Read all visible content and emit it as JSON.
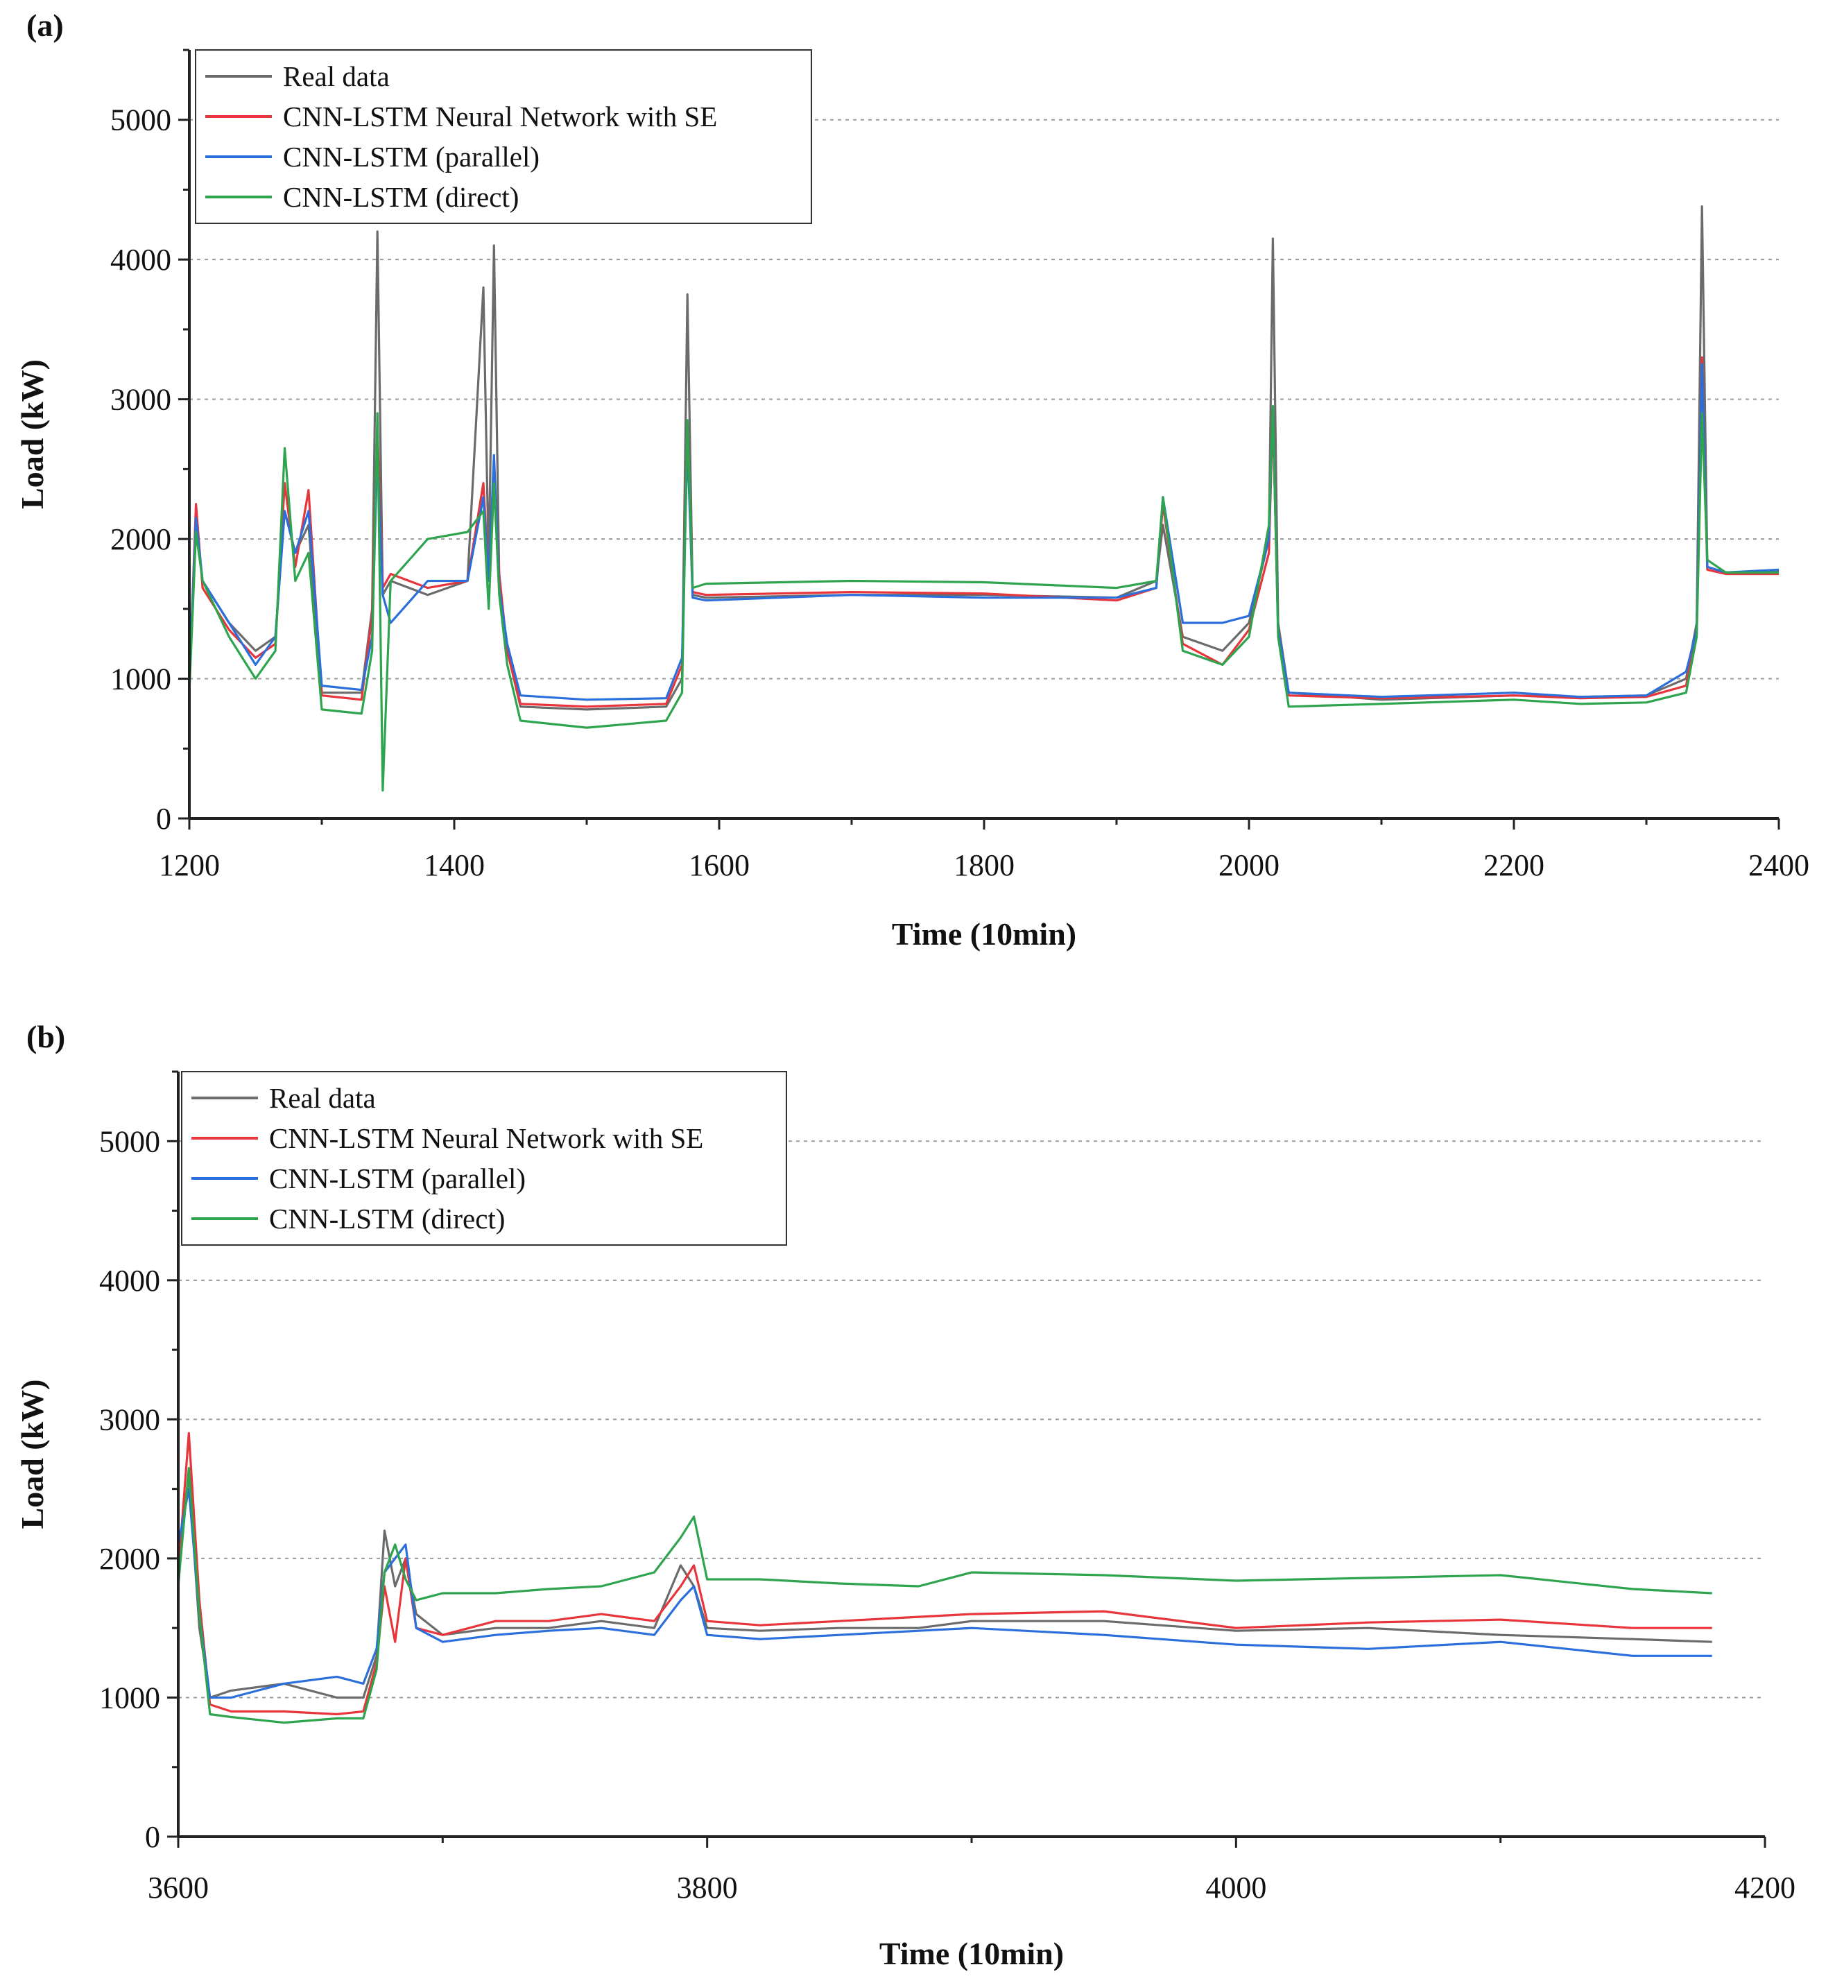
{
  "chart_data": [
    {
      "type": "line",
      "panel_label": "(a)",
      "xlabel": "Time (10min)",
      "ylabel": "Load (kW)",
      "xlim": [
        1200,
        2400
      ],
      "ylim": [
        0,
        5500
      ],
      "xticks": [
        1200,
        1400,
        1600,
        1800,
        2000,
        2200,
        2400
      ],
      "yticks": [
        0,
        1000,
        2000,
        3000,
        4000,
        5000
      ],
      "grid": true,
      "legend_position": "top-left",
      "series": [
        {
          "name": "Real data",
          "color": "#6b6b6b",
          "x": [
            1200,
            1205,
            1210,
            1230,
            1250,
            1265,
            1272,
            1280,
            1290,
            1300,
            1330,
            1338,
            1342,
            1346,
            1352,
            1380,
            1410,
            1422,
            1426,
            1430,
            1434,
            1440,
            1450,
            1500,
            1560,
            1572,
            1576,
            1580,
            1590,
            1700,
            1800,
            1900,
            1930,
            1935,
            1950,
            1980,
            2000,
            2015,
            2018,
            2022,
            2030,
            2100,
            2200,
            2250,
            2300,
            2330,
            2338,
            2342,
            2346,
            2360,
            2400
          ],
          "y": [
            1000,
            2100,
            1700,
            1400,
            1200,
            1300,
            2200,
            1900,
            2100,
            900,
            900,
            1500,
            4200,
            1600,
            1700,
            1600,
            1700,
            3800,
            1800,
            4100,
            1700,
            1200,
            800,
            780,
            800,
            1000,
            3750,
            1600,
            1580,
            1600,
            1600,
            1580,
            1700,
            2100,
            1300,
            1200,
            1400,
            2000,
            4150,
            1400,
            900,
            850,
            880,
            870,
            880,
            1000,
            1400,
            4380,
            1800,
            1760,
            1770
          ]
        },
        {
          "name": "CNN-LSTM Neural Network with SE",
          "color": "#e8353b",
          "x": [
            1200,
            1205,
            1210,
            1230,
            1250,
            1265,
            1272,
            1280,
            1290,
            1300,
            1330,
            1338,
            1342,
            1346,
            1352,
            1380,
            1410,
            1422,
            1426,
            1430,
            1434,
            1440,
            1450,
            1500,
            1560,
            1572,
            1576,
            1580,
            1590,
            1700,
            1800,
            1900,
            1930,
            1935,
            1950,
            1980,
            2000,
            2015,
            2018,
            2022,
            2030,
            2100,
            2200,
            2250,
            2300,
            2330,
            2338,
            2342,
            2346,
            2360,
            2400
          ],
          "y": [
            950,
            2250,
            1650,
            1350,
            1150,
            1250,
            2400,
            1800,
            2350,
            880,
            850,
            1450,
            2800,
            1650,
            1750,
            1650,
            1700,
            2400,
            1700,
            2500,
            1750,
            1200,
            820,
            800,
            820,
            1100,
            2800,
            1620,
            1600,
            1620,
            1610,
            1560,
            1650,
            2250,
            1250,
            1100,
            1350,
            1900,
            2900,
            1350,
            880,
            860,
            880,
            860,
            870,
            950,
            1350,
            3300,
            1780,
            1750,
            1750
          ]
        },
        {
          "name": "CNN-LSTM (parallel)",
          "color": "#2a6fdb",
          "x": [
            1200,
            1205,
            1210,
            1230,
            1250,
            1265,
            1272,
            1280,
            1290,
            1300,
            1330,
            1338,
            1342,
            1346,
            1352,
            1380,
            1410,
            1422,
            1426,
            1430,
            1434,
            1440,
            1450,
            1500,
            1560,
            1572,
            1576,
            1580,
            1590,
            1700,
            1800,
            1900,
            1930,
            1935,
            1950,
            1980,
            2000,
            2015,
            2018,
            2022,
            2030,
            2100,
            2200,
            2250,
            2300,
            2330,
            2338,
            2342,
            2346,
            2360,
            2400
          ],
          "y": [
            1000,
            2150,
            1700,
            1400,
            1100,
            1300,
            2200,
            1900,
            2200,
            950,
            920,
            1300,
            2650,
            1600,
            1400,
            1700,
            1700,
            2300,
            1700,
            2600,
            1650,
            1250,
            880,
            850,
            860,
            1150,
            2700,
            1580,
            1560,
            1600,
            1580,
            1580,
            1650,
            2300,
            1400,
            1400,
            1450,
            2000,
            2950,
            1350,
            900,
            870,
            900,
            870,
            880,
            1050,
            1350,
            3250,
            1800,
            1760,
            1780
          ]
        },
        {
          "name": "CNN-LSTM (direct)",
          "color": "#2ea44f",
          "x": [
            1200,
            1205,
            1210,
            1230,
            1250,
            1265,
            1272,
            1280,
            1290,
            1300,
            1330,
            1338,
            1342,
            1346,
            1352,
            1380,
            1410,
            1422,
            1426,
            1430,
            1434,
            1440,
            1450,
            1500,
            1560,
            1572,
            1576,
            1580,
            1590,
            1700,
            1800,
            1900,
            1930,
            1935,
            1950,
            1980,
            2000,
            2015,
            2018,
            2022,
            2030,
            2100,
            2200,
            2250,
            2300,
            2330,
            2338,
            2342,
            2346,
            2360,
            2400
          ],
          "y": [
            900,
            2050,
            1700,
            1300,
            1000,
            1200,
            2650,
            1700,
            1900,
            780,
            750,
            1200,
            2900,
            200,
            1700,
            2000,
            2050,
            2200,
            1500,
            2400,
            1600,
            1100,
            700,
            650,
            700,
            900,
            2850,
            1650,
            1680,
            1700,
            1690,
            1650,
            1700,
            2300,
            1200,
            1100,
            1300,
            2100,
            2950,
            1300,
            800,
            820,
            850,
            820,
            830,
            900,
            1300,
            2900,
            1850,
            1760,
            1760
          ]
        }
      ]
    },
    {
      "type": "line",
      "panel_label": "(b)",
      "xlabel": "Time (10min)",
      "ylabel": "Load (kW)",
      "xlim": [
        3600,
        4200
      ],
      "ylim": [
        0,
        5500
      ],
      "xticks": [
        3600,
        3800,
        4000,
        4200
      ],
      "yticks": [
        0,
        1000,
        2000,
        3000,
        4000,
        5000
      ],
      "grid": true,
      "legend_position": "top-left",
      "series": [
        {
          "name": "Real data",
          "color": "#6b6b6b",
          "x": [
            3600,
            3604,
            3608,
            3612,
            3620,
            3640,
            3660,
            3670,
            3675,
            3678,
            3682,
            3686,
            3690,
            3700,
            3720,
            3740,
            3760,
            3780,
            3790,
            3795,
            3800,
            3820,
            3850,
            3880,
            3900,
            3950,
            4000,
            4050,
            4100,
            4150,
            4180
          ],
          "y": [
            2000,
            2600,
            1500,
            1000,
            1050,
            1100,
            1000,
            1000,
            1300,
            2200,
            1800,
            2000,
            1600,
            1450,
            1500,
            1500,
            1550,
            1500,
            1950,
            1800,
            1500,
            1480,
            1500,
            1500,
            1550,
            1550,
            1480,
            1500,
            1450,
            1420,
            1400
          ]
        },
        {
          "name": "CNN-LSTM Neural Network with SE",
          "color": "#e8353b",
          "x": [
            3600,
            3604,
            3608,
            3612,
            3620,
            3640,
            3660,
            3670,
            3675,
            3678,
            3682,
            3686,
            3690,
            3700,
            3720,
            3740,
            3760,
            3780,
            3790,
            3795,
            3800,
            3820,
            3850,
            3880,
            3900,
            3950,
            4000,
            4050,
            4100,
            4150,
            4180
          ],
          "y": [
            1900,
            2900,
            1700,
            950,
            900,
            900,
            880,
            900,
            1250,
            1800,
            1400,
            2000,
            1500,
            1450,
            1550,
            1550,
            1600,
            1550,
            1800,
            1950,
            1550,
            1520,
            1550,
            1580,
            1600,
            1620,
            1500,
            1540,
            1560,
            1500,
            1500
          ]
        },
        {
          "name": "CNN-LSTM (parallel)",
          "color": "#2a6fdb",
          "x": [
            3600,
            3604,
            3608,
            3612,
            3620,
            3640,
            3660,
            3670,
            3675,
            3678,
            3682,
            3686,
            3690,
            3700,
            3720,
            3740,
            3760,
            3780,
            3790,
            3795,
            3800,
            3820,
            3850,
            3880,
            3900,
            3950,
            4000,
            4050,
            4100,
            4150,
            4180
          ],
          "y": [
            2100,
            2500,
            1600,
            1000,
            1000,
            1100,
            1150,
            1100,
            1350,
            1900,
            2000,
            2100,
            1500,
            1400,
            1450,
            1480,
            1500,
            1450,
            1700,
            1800,
            1450,
            1420,
            1450,
            1480,
            1500,
            1450,
            1380,
            1350,
            1400,
            1300,
            1300
          ]
        },
        {
          "name": "CNN-LSTM (direct)",
          "color": "#2ea44f",
          "x": [
            3600,
            3604,
            3608,
            3612,
            3620,
            3640,
            3660,
            3670,
            3675,
            3678,
            3682,
            3686,
            3690,
            3700,
            3720,
            3740,
            3760,
            3780,
            3790,
            3795,
            3800,
            3820,
            3850,
            3880,
            3900,
            3950,
            4000,
            4050,
            4100,
            4150,
            4180
          ],
          "y": [
            1800,
            2650,
            1600,
            880,
            860,
            820,
            850,
            850,
            1200,
            1900,
            2100,
            1850,
            1700,
            1750,
            1750,
            1780,
            1800,
            1900,
            2150,
            2300,
            1850,
            1850,
            1820,
            1800,
            1900,
            1880,
            1840,
            1860,
            1880,
            1780,
            1750
          ]
        }
      ]
    }
  ]
}
